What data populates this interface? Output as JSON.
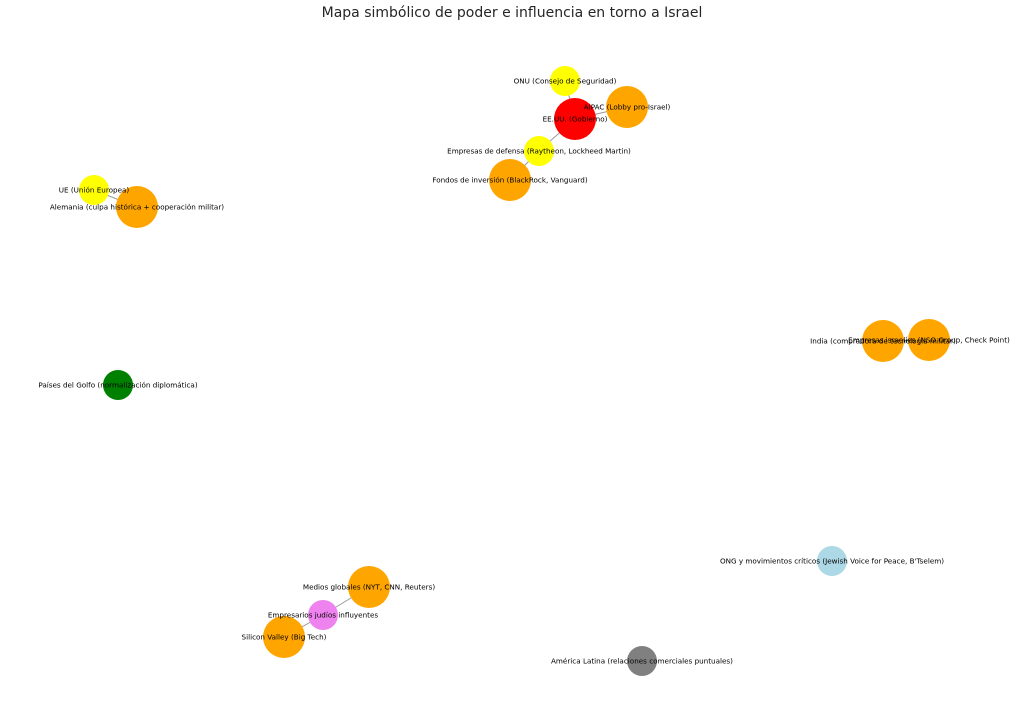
{
  "title": "Mapa simbólico de poder e influencia en torno a Israel",
  "nodes": [
    {
      "id": "onu",
      "label": "ONU (Consejo de Seguridad)",
      "color": "#ffff00",
      "size": "small"
    },
    {
      "id": "aipac",
      "label": "AIPAC (Lobby pro-Israel)",
      "color": "#ffa500",
      "size": "large"
    },
    {
      "id": "eeuu",
      "label": "EE.UU. (Gobierno)",
      "color": "#ff0000",
      "size": "large"
    },
    {
      "id": "defensa",
      "label": "Empresas de defensa (Raytheon, Lockheed Martin)",
      "color": "#ffff00",
      "size": "small"
    },
    {
      "id": "fondos",
      "label": "Fondos de inversión (BlackRock, Vanguard)",
      "color": "#ffa500",
      "size": "large"
    },
    {
      "id": "ue",
      "label": "UE (Unión Europea)",
      "color": "#ffff00",
      "size": "small"
    },
    {
      "id": "alemania",
      "label": "Alemania (culpa histórica + cooperación militar)",
      "color": "#ffa500",
      "size": "large"
    },
    {
      "id": "india",
      "label": "India (compradora de tecnología militar)",
      "color": "#ffa500",
      "size": "large"
    },
    {
      "id": "ciber",
      "label": "Empresas israelíes (NSO Group, Check Point)",
      "color": "#ffa500",
      "size": "large"
    },
    {
      "id": "golfo",
      "label": "Países del Golfo (normalización diplomática)",
      "color": "#008000",
      "size": "small"
    },
    {
      "id": "medios",
      "label": "Medios globales (NYT, CNN, Reuters)",
      "color": "#ffa500",
      "size": "large"
    },
    {
      "id": "empresarios",
      "label": "Empresarios judíos influyentes",
      "color": "#ee82ee",
      "size": "small"
    },
    {
      "id": "silicon",
      "label": "Silicon Valley (Big Tech)",
      "color": "#ffa500",
      "size": "large"
    },
    {
      "id": "ong",
      "label": "ONG y movimientos críticos (Jewish Voice for Peace, B'Tselem)",
      "color": "#add8e6",
      "size": "small"
    },
    {
      "id": "latam",
      "label": "América Latina (relaciones comerciales puntuales)",
      "color": "#808080",
      "size": "small"
    }
  ],
  "edges": [
    [
      "onu",
      "eeuu"
    ],
    [
      "aipac",
      "eeuu"
    ],
    [
      "eeuu",
      "defensa"
    ],
    [
      "defensa",
      "fondos"
    ],
    [
      "ue",
      "alemania"
    ],
    [
      "india",
      "ciber"
    ],
    [
      "medios",
      "empresarios"
    ],
    [
      "empresarios",
      "silicon"
    ]
  ]
}
